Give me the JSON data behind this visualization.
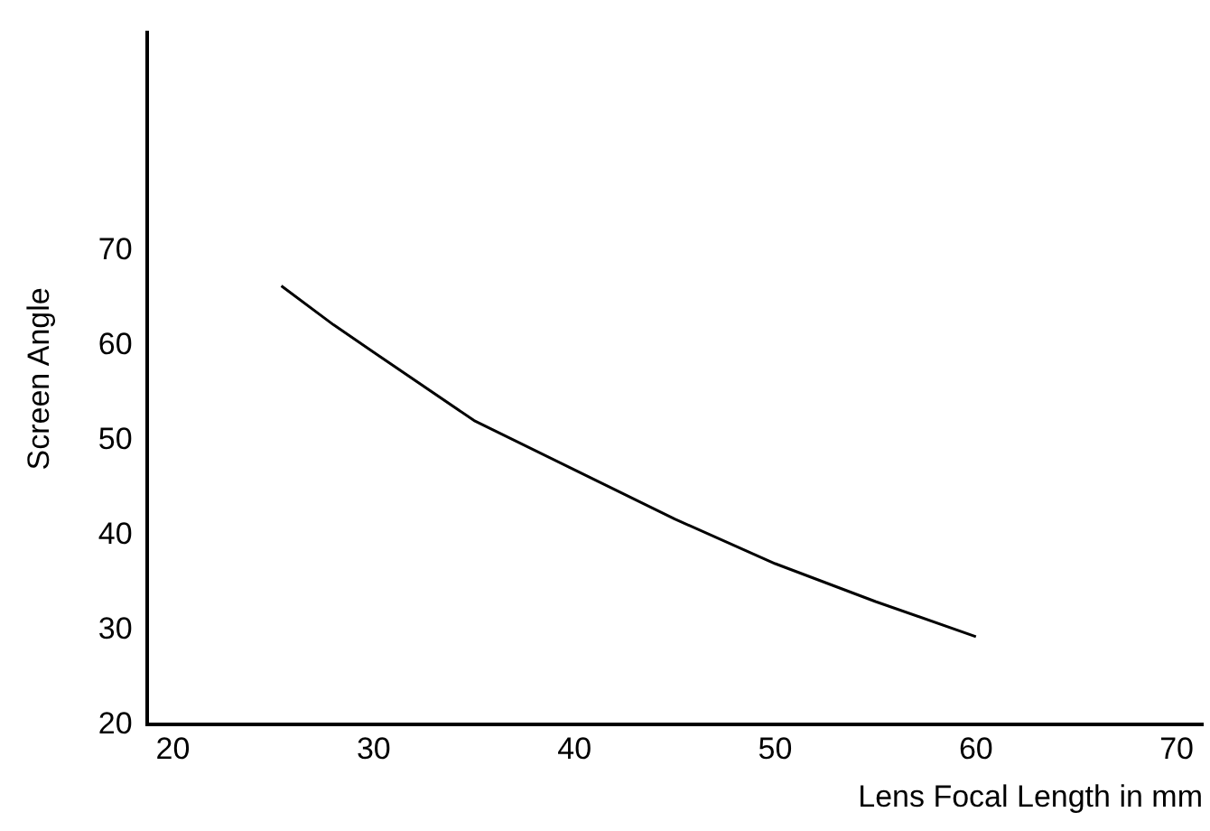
{
  "chart_data": {
    "type": "line",
    "xlabel": "Lens Focal Length in mm",
    "ylabel": "Screen Angle",
    "x": [
      25.4,
      28,
      30,
      35,
      40,
      45,
      50,
      55,
      60
    ],
    "series": [
      {
        "color": "#000000",
        "values": [
          66.3,
          62.2,
          59.3,
          52.1,
          46.9,
          41.7,
          37.0,
          33.0,
          29.3
        ]
      }
    ],
    "xlim": [
      18.7,
      71.3
    ],
    "xticks": [
      20,
      30,
      40,
      50,
      60,
      70
    ],
    "ylim": [
      20,
      93
    ],
    "yticks": [
      20,
      30,
      40,
      50,
      60,
      70
    ],
    "grid": false,
    "legend": false,
    "marker": "none",
    "line_style": "solid"
  }
}
